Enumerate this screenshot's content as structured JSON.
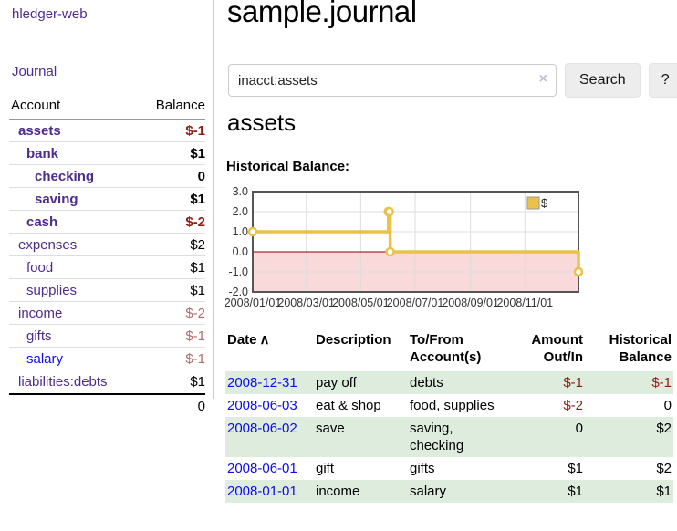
{
  "app": {
    "brand": "hledger-web",
    "nav_journal": "Journal"
  },
  "sidebar": {
    "headers": {
      "account": "Account",
      "balance": "Balance"
    },
    "accounts": [
      {
        "name": "assets",
        "balance": "$-1",
        "indent": 1,
        "bold": true,
        "neg": "strong"
      },
      {
        "name": "bank",
        "balance": "$1",
        "indent": 2,
        "bold": true
      },
      {
        "name": "checking",
        "balance": "0",
        "indent": 3,
        "bold": true
      },
      {
        "name": "saving",
        "balance": "$1",
        "indent": 3,
        "bold": true
      },
      {
        "name": "cash",
        "balance": "$-2",
        "indent": 2,
        "bold": true,
        "neg": "strong"
      },
      {
        "name": "expenses",
        "balance": "$2",
        "indent": 1
      },
      {
        "name": "food",
        "balance": "$1",
        "indent": 2
      },
      {
        "name": "supplies",
        "balance": "$1",
        "indent": 2
      },
      {
        "name": "income",
        "balance": "$-2",
        "indent": 1,
        "neg": "muted"
      },
      {
        "name": "gifts",
        "balance": "$-1",
        "indent": 2,
        "neg": "muted"
      },
      {
        "name": "salary",
        "balance": "$-1",
        "indent": 2,
        "neg": "muted",
        "unvisited": true
      },
      {
        "name": "liabilities:debts",
        "balance": "$1",
        "indent": 1
      }
    ],
    "total": "0"
  },
  "header": {
    "title": "sample.journal"
  },
  "search": {
    "value": "inacct:assets",
    "clear_icon": "×",
    "button": "Search",
    "help_button": "?"
  },
  "account_page": {
    "title": "assets",
    "chart_label": "Historical Balance:"
  },
  "chart_data": {
    "type": "line",
    "step": true,
    "title": "Historical Balance",
    "x_range": [
      "2008-01-01",
      "2008-12-31"
    ],
    "ylim": [
      -2,
      3
    ],
    "y_ticks": [
      3,
      2,
      1,
      0,
      -1,
      -2
    ],
    "x_ticks": [
      {
        "date": "2008-01-01",
        "label": "2008/01/01"
      },
      {
        "date": "2008-03-01",
        "label": "2008/03/01"
      },
      {
        "date": "2008-05-01",
        "label": "2008/05/01"
      },
      {
        "date": "2008-07-01",
        "label": "2008/07/01"
      },
      {
        "date": "2008-09-01",
        "label": "2008/09/01"
      },
      {
        "date": "2008-11-01",
        "label": "2008/11/01"
      }
    ],
    "series": [
      {
        "name": "$",
        "color": "#e9c247",
        "points": [
          [
            "2008-01-01",
            1
          ],
          [
            "2008-06-01",
            2
          ],
          [
            "2008-06-02",
            2
          ],
          [
            "2008-06-03",
            0
          ],
          [
            "2008-12-31",
            -1
          ]
        ]
      }
    ],
    "negative_region_color": "#f9d9d9",
    "zero_line_color": "#8b0000",
    "legend_position": "top-right",
    "grid": true
  },
  "register": {
    "headers": {
      "date": "Date",
      "sort_icon": "∧",
      "description": "Description",
      "accounts_line1": "To/From",
      "accounts_line2": "Account(s)",
      "amount_line1": "Amount",
      "amount_line2": "Out/In",
      "balance_line1": "Historical",
      "balance_line2": "Balance"
    },
    "rows": [
      {
        "date": "2008-12-31",
        "description": "pay off",
        "accounts_lines": [
          "debts"
        ],
        "amount": "$-1",
        "amount_neg": true,
        "balance": "$-1",
        "balance_neg": true,
        "shaded": true
      },
      {
        "date": "2008-06-03",
        "description": "eat & shop",
        "accounts_lines": [
          "food, supplies"
        ],
        "amount": "$-2",
        "amount_neg": true,
        "balance": "0",
        "shaded": false
      },
      {
        "date": "2008-06-02",
        "description": "save",
        "accounts_lines": [
          "saving,",
          "checking"
        ],
        "amount": "0",
        "balance": "$2",
        "shaded": true
      },
      {
        "date": "2008-06-01",
        "description": "gift",
        "accounts_lines": [
          "gifts"
        ],
        "amount": "$1",
        "balance": "$2",
        "shaded": false
      },
      {
        "date": "2008-01-01",
        "description": "income",
        "accounts_lines": [
          "salary"
        ],
        "amount": "$1",
        "balance": "$1",
        "shaded": true
      }
    ]
  }
}
